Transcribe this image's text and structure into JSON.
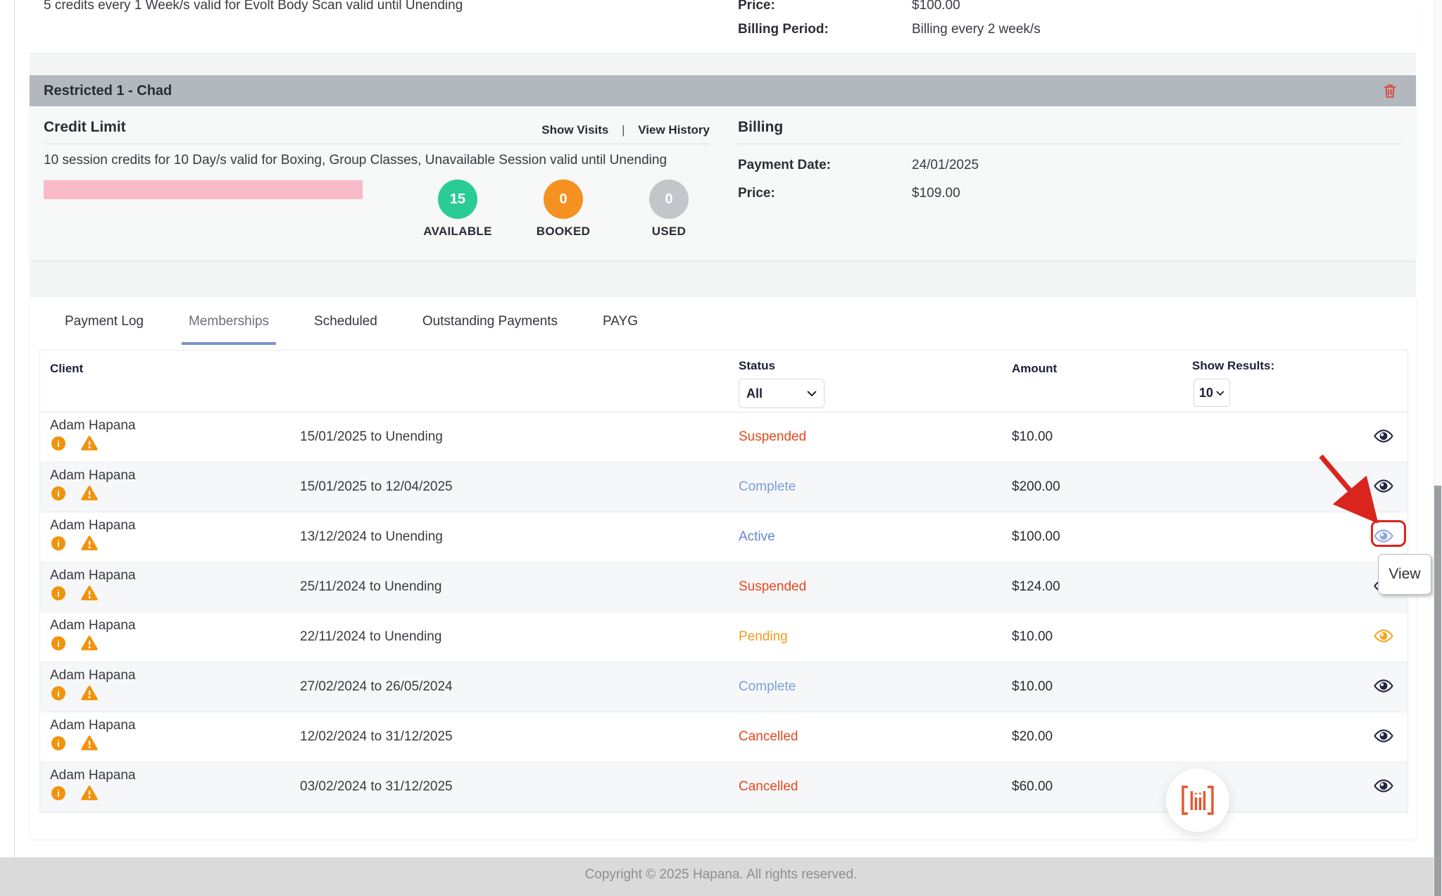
{
  "top_card": {
    "description": "5 credits every 1 Week/s valid for Evolt Body Scan valid until Unending",
    "price_label": "Price:",
    "price_value": "$100.00",
    "billing_period_label": "Billing Period:",
    "billing_period_value": "Billing every 2 week/s"
  },
  "restricted_card": {
    "title": "Restricted 1 - Chad",
    "credit_limit": {
      "title": "Credit Limit",
      "show_visits": "Show Visits",
      "separator": "|",
      "view_history": "View History",
      "description": "10 session credits for 10 Day/s valid for Boxing, Group Classes, Unavailable Session valid until Unending",
      "stats": [
        {
          "value": "15",
          "label": "AVAILABLE",
          "color": "#2bcb96"
        },
        {
          "value": "0",
          "label": "BOOKED",
          "color": "#f59120"
        },
        {
          "value": "0",
          "label": "USED",
          "color": "#c3c6cb"
        }
      ]
    },
    "billing": {
      "title": "Billing",
      "payment_date_label": "Payment Date:",
      "payment_date_value": "24/01/2025",
      "price_label": "Price:",
      "price_value": "$109.00"
    }
  },
  "tabs": [
    {
      "label": "Payment Log"
    },
    {
      "label": "Memberships"
    },
    {
      "label": "Scheduled"
    },
    {
      "label": "Outstanding Payments"
    },
    {
      "label": "PAYG"
    }
  ],
  "table": {
    "client_header": "Client",
    "status_header": "Status",
    "status_filter_value": "All",
    "amount_header": "Amount",
    "show_results_label": "Show Results:",
    "show_results_value": "10",
    "rows": [
      {
        "name": "Adam Hapana",
        "dates": "15/01/2025 to Unending",
        "status": "Suspended",
        "status_color": "#e8481c",
        "amount": "$10.00",
        "eye_color": "#232544"
      },
      {
        "name": "Adam Hapana",
        "dates": "15/01/2025 to 12/04/2025",
        "status": "Complete",
        "status_color": "#7ba0da",
        "amount": "$200.00",
        "eye_color": "#232544"
      },
      {
        "name": "Adam Hapana",
        "dates": "13/12/2024 to Unending",
        "status": "Active",
        "status_color": "#6189d2",
        "amount": "$100.00",
        "eye_color": "#8fa9dc"
      },
      {
        "name": "Adam Hapana",
        "dates": "25/11/2024 to Unending",
        "status": "Suspended",
        "status_color": "#e8481c",
        "amount": "$124.00",
        "eye_color": "#232544"
      },
      {
        "name": "Adam Hapana",
        "dates": "22/11/2024 to Unending",
        "status": "Pending",
        "status_color": "#f39c1c",
        "amount": "$10.00",
        "eye_color": "#f5a71f"
      },
      {
        "name": "Adam Hapana",
        "dates": "27/02/2024 to 26/05/2024",
        "status": "Complete",
        "status_color": "#7ba0da",
        "amount": "$10.00",
        "eye_color": "#232544"
      },
      {
        "name": "Adam Hapana",
        "dates": "12/02/2024 to 31/12/2025",
        "status": "Cancelled",
        "status_color": "#e8481c",
        "amount": "$20.00",
        "eye_color": "#232544"
      },
      {
        "name": "Adam Hapana",
        "dates": "03/02/2024 to 31/12/2025",
        "status": "Cancelled",
        "status_color": "#e8481c",
        "amount": "$60.00",
        "eye_color": "#232544"
      }
    ]
  },
  "annotations": {
    "tooltip_label": "View"
  },
  "footer": {
    "copyright": "Copyright © 2025 Hapana. All rights reserved."
  },
  "colors": {
    "header_bar": "#b3b7be",
    "pink_bar": "#f9bac7",
    "tab_underline": "#7e95cc",
    "annotation_red": "#d9251d",
    "trash_red": "#e03a2f",
    "logo_orange": "#e7552e",
    "icon_orange": "#f2930d",
    "footer_bg": "#dadada"
  }
}
